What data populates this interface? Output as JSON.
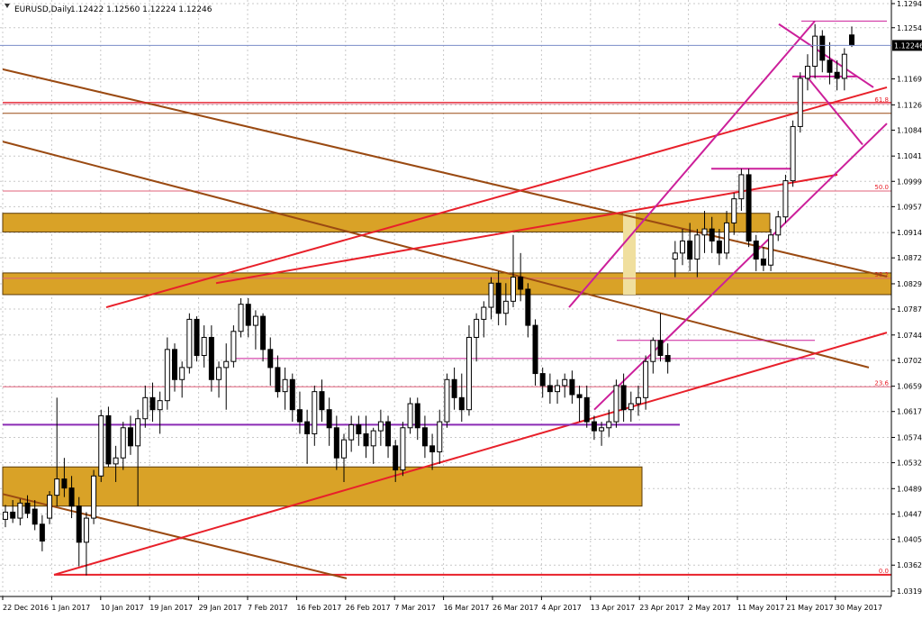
{
  "header": {
    "symbol_label": "EURUSD,Daily",
    "ohlc_label": "1.12422 1.12560 1.12224 1.12246"
  },
  "colors": {
    "background": "#ffffff",
    "grid": "#c8c8c8",
    "zone_fill": "#d9a227",
    "zone_light": "#f0df9e",
    "candle_up": "#ffffff",
    "candle_down": "#000000",
    "trend_red": "#e8202a",
    "trend_brown": "#9a4a12",
    "channel_magenta": "#cc1f9a",
    "level_purple": "#8a2ab5",
    "fib_pink": "#e0607a",
    "current_price_line": "#7a8cc8"
  },
  "chart_data": {
    "type": "candlestick",
    "symbol": "EURUSD",
    "timeframe": "Daily",
    "last_bar": {
      "open": 1.12422,
      "high": 1.1256,
      "low": 1.12224,
      "close": 1.12246
    },
    "current_price": 1.12246,
    "ylim": [
      1.031,
      1.13
    ],
    "y_ticks": [
      1.1294,
      1.1254,
      1.1169,
      1.1126,
      1.1084,
      1.1041,
      1.0999,
      1.0957,
      1.0914,
      1.0872,
      1.0829,
      1.0787,
      1.0744,
      1.0702,
      1.0659,
      1.0617,
      1.0574,
      1.0532,
      1.0489,
      1.0447,
      1.0405,
      1.0362,
      1.0319
    ],
    "x_labels": [
      "22 Dec 2016",
      "1 Jan 2017",
      "10 Jan 2017",
      "19 Jan 2017",
      "29 Jan 2017",
      "7 Feb 2017",
      "16 Feb 2017",
      "26 Feb 2017",
      "7 Mar 2017",
      "16 Mar 2017",
      "26 Mar 2017",
      "4 Apr 2017",
      "13 Apr 2017",
      "23 Apr 2017",
      "2 May 2017",
      "11 May 2017",
      "21 May 2017",
      "30 May 2017"
    ],
    "fib_levels": [
      {
        "label": "61.8",
        "price": 1.1128
      },
      {
        "label": "50.0",
        "price": 1.0983
      },
      {
        "label": "38.2",
        "price": 1.0838
      },
      {
        "label": "23.6",
        "price": 1.0658
      },
      {
        "label": "0.0",
        "price": 1.0346
      }
    ],
    "zones": [
      {
        "from": 1.0915,
        "to": 1.0946,
        "type": "resistance"
      },
      {
        "from": 1.0811,
        "to": 1.0847,
        "type": "resistance"
      },
      {
        "from": 1.046,
        "to": 1.0525,
        "type": "support"
      }
    ],
    "grid": true,
    "candles": [
      [
        1.0438,
        1.0462,
        1.0425,
        1.045
      ],
      [
        1.045,
        1.047,
        1.0432,
        1.044
      ],
      [
        1.044,
        1.0472,
        1.0428,
        1.0465
      ],
      [
        1.0465,
        1.0478,
        1.044,
        1.0448
      ],
      [
        1.0455,
        1.047,
        1.042,
        1.043
      ],
      [
        1.043,
        1.0445,
        1.0385,
        1.0402
      ],
      [
        1.044,
        1.0485,
        1.043,
        1.0478
      ],
      [
        1.0478,
        1.064,
        1.046,
        1.0505
      ],
      [
        1.0505,
        1.054,
        1.0475,
        1.049
      ],
      [
        1.049,
        1.051,
        1.044,
        1.046
      ],
      [
        1.046,
        1.0475,
        1.036,
        1.04
      ],
      [
        1.04,
        1.045,
        1.0345,
        1.044
      ],
      [
        1.044,
        1.052,
        1.043,
        1.051
      ],
      [
        1.051,
        1.062,
        1.05,
        1.061
      ],
      [
        1.061,
        1.0625,
        1.0525,
        1.053
      ],
      [
        1.053,
        1.056,
        1.05,
        1.054
      ],
      [
        1.054,
        1.06,
        1.052,
        1.059
      ],
      [
        1.059,
        1.061,
        1.0545,
        1.056
      ],
      [
        1.056,
        1.062,
        1.046,
        1.0605
      ],
      [
        1.0605,
        1.066,
        1.059,
        1.064
      ],
      [
        1.064,
        1.0665,
        1.06,
        1.062
      ],
      [
        1.062,
        1.065,
        1.058,
        1.0635
      ],
      [
        1.0635,
        1.074,
        1.062,
        1.072
      ],
      [
        1.072,
        1.073,
        1.065,
        1.067
      ],
      [
        1.067,
        1.07,
        1.064,
        1.069
      ],
      [
        1.069,
        1.078,
        1.068,
        1.077
      ],
      [
        1.077,
        1.0775,
        1.07,
        1.071
      ],
      [
        1.071,
        1.076,
        1.069,
        1.074
      ],
      [
        1.074,
        1.076,
        1.065,
        1.067
      ],
      [
        1.067,
        1.07,
        1.064,
        1.069
      ],
      [
        1.069,
        1.073,
        1.062,
        1.07
      ],
      [
        1.07,
        1.076,
        1.069,
        1.075
      ],
      [
        1.075,
        1.0805,
        1.074,
        1.0795
      ],
      [
        1.0795,
        1.0805,
        1.074,
        1.076
      ],
      [
        1.076,
        1.0785,
        1.072,
        1.0775
      ],
      [
        1.0775,
        1.078,
        1.07,
        1.072
      ],
      [
        1.072,
        1.074,
        1.066,
        1.069
      ],
      [
        1.069,
        1.071,
        1.064,
        1.065
      ],
      [
        1.065,
        1.069,
        1.062,
        1.067
      ],
      [
        1.067,
        1.068,
        1.06,
        1.062
      ],
      [
        1.062,
        1.065,
        1.058,
        1.06
      ],
      [
        1.06,
        1.062,
        1.053,
        1.058
      ],
      [
        1.058,
        1.066,
        1.056,
        1.065
      ],
      [
        1.065,
        1.067,
        1.06,
        1.062
      ],
      [
        1.062,
        1.064,
        1.056,
        1.059
      ],
      [
        1.059,
        1.061,
        1.052,
        1.054
      ],
      [
        1.054,
        1.058,
        1.05,
        1.057
      ],
      [
        1.057,
        1.061,
        1.055,
        1.0595
      ],
      [
        1.0595,
        1.061,
        1.056,
        1.058
      ],
      [
        1.058,
        1.061,
        1.054,
        1.056
      ],
      [
        1.056,
        1.059,
        1.053,
        1.0585
      ],
      [
        1.0585,
        1.062,
        1.056,
        1.06
      ],
      [
        1.06,
        1.061,
        1.054,
        1.056
      ],
      [
        1.056,
        1.057,
        1.05,
        1.052
      ],
      [
        1.052,
        1.06,
        1.051,
        1.059
      ],
      [
        1.059,
        1.064,
        1.058,
        1.063
      ],
      [
        1.063,
        1.064,
        1.057,
        1.059
      ],
      [
        1.059,
        1.061,
        1.054,
        1.056
      ],
      [
        1.056,
        1.058,
        1.052,
        1.055
      ],
      [
        1.055,
        1.062,
        1.053,
        1.06
      ],
      [
        1.06,
        1.068,
        1.059,
        1.067
      ],
      [
        1.067,
        1.069,
        1.062,
        1.064
      ],
      [
        1.064,
        1.068,
        1.06,
        1.062
      ],
      [
        1.062,
        1.076,
        1.061,
        1.074
      ],
      [
        1.074,
        1.078,
        1.07,
        1.077
      ],
      [
        1.077,
        1.08,
        1.074,
        1.079
      ],
      [
        1.079,
        1.084,
        1.077,
        1.083
      ],
      [
        1.083,
        1.085,
        1.076,
        1.078
      ],
      [
        1.078,
        1.083,
        1.076,
        1.08
      ],
      [
        1.08,
        1.091,
        1.079,
        1.084
      ],
      [
        1.084,
        1.088,
        1.08,
        1.082
      ],
      [
        1.082,
        1.083,
        1.074,
        1.076
      ],
      [
        1.076,
        1.077,
        1.066,
        1.068
      ],
      [
        1.068,
        1.069,
        1.064,
        1.066
      ],
      [
        1.066,
        1.068,
        1.063,
        1.065
      ],
      [
        1.065,
        1.067,
        1.063,
        1.066
      ],
      [
        1.066,
        1.068,
        1.064,
        1.067
      ],
      [
        1.067,
        1.0685,
        1.063,
        1.0645
      ],
      [
        1.0645,
        1.066,
        1.06,
        1.064
      ],
      [
        1.064,
        1.066,
        1.059,
        1.06
      ],
      [
        1.06,
        1.061,
        1.057,
        1.0585
      ],
      [
        1.0585,
        1.06,
        1.056,
        1.059
      ],
      [
        1.059,
        1.062,
        1.0575,
        1.06
      ],
      [
        1.06,
        1.067,
        1.059,
        1.066
      ],
      [
        1.066,
        1.068,
        1.06,
        1.062
      ],
      [
        1.062,
        1.065,
        1.06,
        1.063
      ],
      [
        1.063,
        1.066,
        1.061,
        1.064
      ],
      [
        1.064,
        1.071,
        1.062,
        1.07
      ],
      [
        1.07,
        1.074,
        1.068,
        1.0735
      ],
      [
        1.0735,
        1.078,
        1.07,
        1.071
      ],
      [
        1.071,
        1.073,
        1.068,
        1.07
      ],
      [
        1.087,
        1.09,
        1.084,
        1.088
      ],
      [
        1.088,
        1.092,
        1.086,
        1.09
      ],
      [
        1.09,
        1.093,
        1.085,
        1.087
      ],
      [
        1.087,
        1.092,
        1.084,
        1.091
      ],
      [
        1.091,
        1.095,
        1.088,
        1.092
      ],
      [
        1.092,
        1.094,
        1.088,
        1.09
      ],
      [
        1.09,
        1.092,
        1.086,
        1.088
      ],
      [
        1.088,
        1.095,
        1.087,
        1.093
      ],
      [
        1.093,
        1.098,
        1.091,
        1.097
      ],
      [
        1.097,
        1.102,
        1.095,
        1.101
      ],
      [
        1.101,
        1.102,
        1.089,
        1.09
      ],
      [
        1.09,
        1.091,
        1.085,
        1.087
      ],
      [
        1.087,
        1.089,
        1.085,
        1.086
      ],
      [
        1.086,
        1.092,
        1.085,
        1.091
      ],
      [
        1.091,
        1.095,
        1.09,
        1.094
      ],
      [
        1.094,
        1.101,
        1.093,
        1.1
      ],
      [
        1.1,
        1.11,
        1.099,
        1.109
      ],
      [
        1.109,
        1.118,
        1.108,
        1.117
      ],
      [
        1.117,
        1.121,
        1.115,
        1.119
      ],
      [
        1.119,
        1.126,
        1.117,
        1.124
      ],
      [
        1.124,
        1.125,
        1.118,
        1.12
      ],
      [
        1.12,
        1.123,
        1.116,
        1.118
      ],
      [
        1.118,
        1.12,
        1.115,
        1.117
      ],
      [
        1.117,
        1.122,
        1.115,
        1.121
      ],
      [
        1.1242,
        1.1256,
        1.1222,
        1.1225
      ]
    ]
  }
}
